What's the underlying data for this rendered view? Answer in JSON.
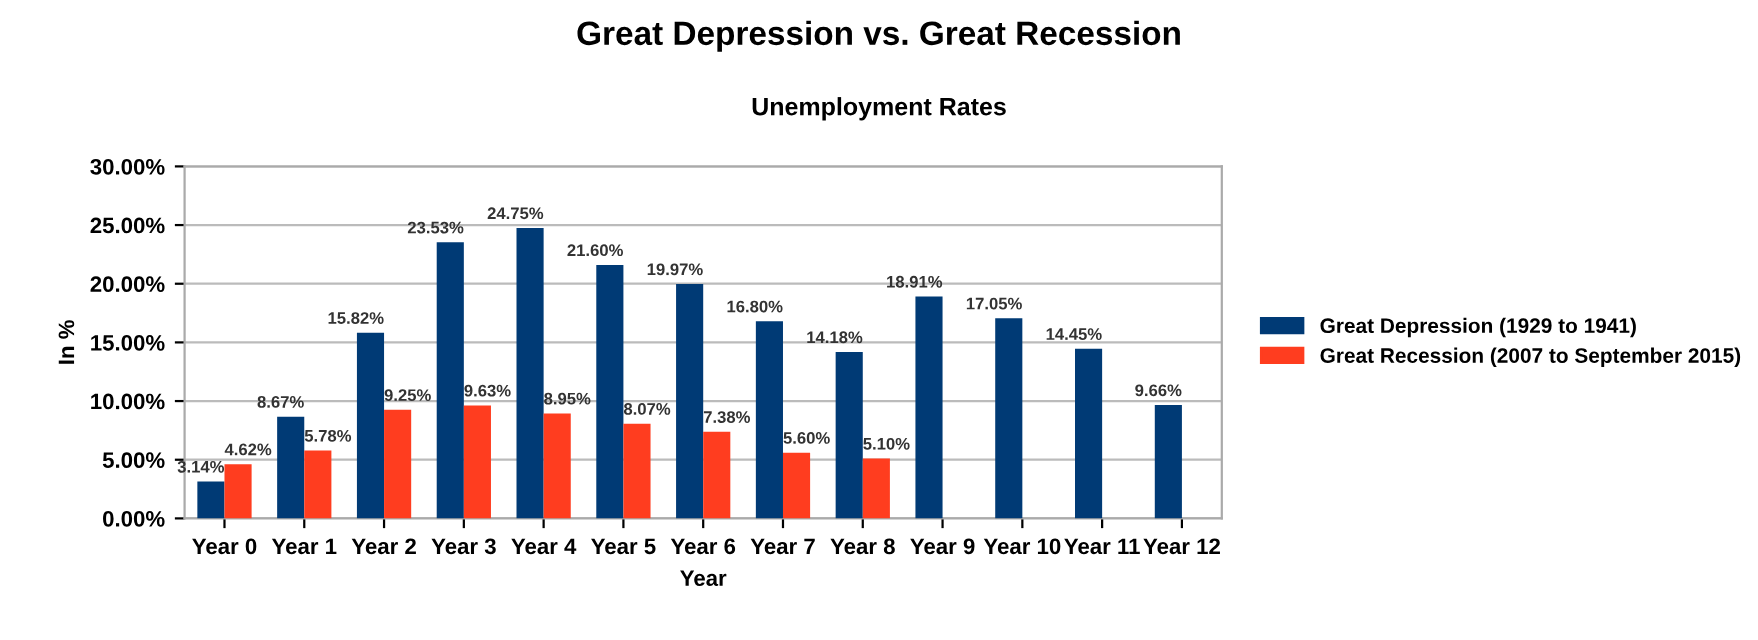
{
  "chart_data": {
    "type": "bar",
    "title": "Great Depression vs. Great Recession",
    "subtitle": "Unemployment Rates",
    "xlabel": "Year",
    "ylabel": "In %",
    "categories": [
      "Year 0",
      "Year 1",
      "Year 2",
      "Year 3",
      "Year 4",
      "Year 5",
      "Year 6",
      "Year 7",
      "Year 8",
      "Year 9",
      "Year 10",
      "Year 11",
      "Year 12"
    ],
    "series": [
      {
        "name": "Great Depression (1929 to 1941)",
        "color": "#003a75",
        "values": [
          3.14,
          8.67,
          15.82,
          23.53,
          24.75,
          21.6,
          19.97,
          16.8,
          14.18,
          18.91,
          17.05,
          14.45,
          9.66
        ],
        "value_labels": [
          "3.14%",
          "8.67%",
          "15.82%",
          "23.53%",
          "24.75%",
          "21.60%",
          "19.97%",
          "16.80%",
          "14.18%",
          "18.91%",
          "17.05%",
          "14.45%",
          "9.66%"
        ]
      },
      {
        "name": "Great Recession (2007 to September 2015)",
        "color": "#ff3d1f",
        "values": [
          4.62,
          5.78,
          9.25,
          9.63,
          8.95,
          8.07,
          7.38,
          5.6,
          5.1,
          null,
          null,
          null,
          null
        ],
        "value_labels": [
          "4.62%",
          "5.78%",
          "9.25%",
          "9.63%",
          "8.95%",
          "8.07%",
          "7.38%",
          "5.60%",
          "5.10%",
          null,
          null,
          null,
          null
        ]
      }
    ],
    "ylim": [
      0,
      30
    ],
    "yticks": [
      {
        "value": 0,
        "label": "0.00%"
      },
      {
        "value": 5,
        "label": "5.00%"
      },
      {
        "value": 10,
        "label": "10.00%"
      },
      {
        "value": 15,
        "label": "15.00%"
      },
      {
        "value": 20,
        "label": "20.00%"
      },
      {
        "value": 25,
        "label": "25.00%"
      },
      {
        "value": 30,
        "label": "30.00%"
      }
    ],
    "grid": "y",
    "legend": "right"
  }
}
